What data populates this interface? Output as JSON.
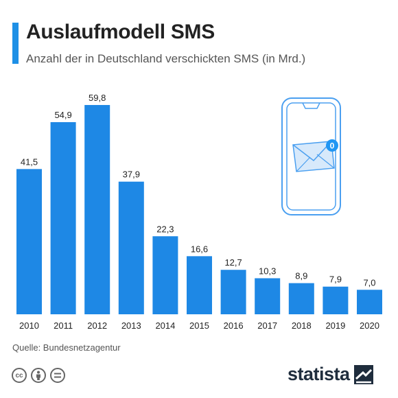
{
  "header": {
    "title": "Auslaufmodell SMS",
    "subtitle": "Anzahl der in Deutschland verschickten SMS (in Mrd.)"
  },
  "footer": {
    "source": "Quelle: Bundesnetzagentur",
    "brand": "statista",
    "license_icons": [
      "cc-icon",
      "attribution-icon",
      "no-derivatives-icon"
    ]
  },
  "colors": {
    "bar": "#1e88e5",
    "accent": "#1e90e6",
    "icon_stroke": "#4a9ff0",
    "brand": "#1f2d3d"
  },
  "chart_data": {
    "type": "bar",
    "categories": [
      "2010",
      "2011",
      "2012",
      "2013",
      "2014",
      "2015",
      "2016",
      "2017",
      "2018",
      "2019",
      "2020"
    ],
    "values": [
      41.5,
      54.9,
      59.8,
      37.9,
      22.3,
      16.6,
      12.7,
      10.3,
      8.9,
      7.9,
      7.0
    ],
    "value_labels": [
      "41,5",
      "54,9",
      "59,8",
      "37,9",
      "22,3",
      "16,6",
      "12,7",
      "10,3",
      "8,9",
      "7,9",
      "7,0"
    ],
    "title": "Auslaufmodell SMS",
    "xlabel": "",
    "ylabel": "",
    "ylim": [
      0,
      60
    ],
    "grid": false,
    "legend": "none"
  }
}
